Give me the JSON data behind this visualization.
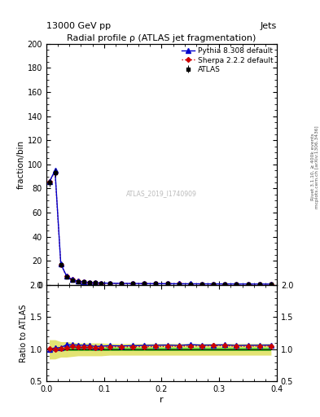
{
  "title": "Radial profile ρ (ATLAS jet fragmentation)",
  "top_left_label": "13000 GeV pp",
  "top_right_label": "Jets",
  "right_label_line1": "Rivet 3.1.10, ≥ 400k events",
  "right_label_line2": "mcplots.cern.ch [arXiv:1306.3436]",
  "watermark": "ATLAS_2019_I1740909",
  "ylabel_main": "fraction/bin",
  "ylabel_ratio": "Ratio to ATLAS",
  "xlabel": "r",
  "ylim_main": [
    0,
    200
  ],
  "ylim_ratio": [
    0.5,
    2.0
  ],
  "yticks_main": [
    0,
    20,
    40,
    60,
    80,
    100,
    120,
    140,
    160,
    180,
    200
  ],
  "yticks_ratio": [
    0.5,
    1.0,
    1.5,
    2.0
  ],
  "xlim": [
    0,
    0.4
  ],
  "xticks": [
    0.0,
    0.1,
    0.2,
    0.3,
    0.4
  ],
  "atlas_x": [
    0.005,
    0.015,
    0.025,
    0.035,
    0.045,
    0.055,
    0.065,
    0.075,
    0.085,
    0.095,
    0.11,
    0.13,
    0.15,
    0.17,
    0.19,
    0.21,
    0.23,
    0.25,
    0.27,
    0.29,
    0.31,
    0.33,
    0.35,
    0.37,
    0.39
  ],
  "atlas_y": [
    85.0,
    93.0,
    17.0,
    7.0,
    4.2,
    3.0,
    2.4,
    2.0,
    1.8,
    1.6,
    1.4,
    1.3,
    1.2,
    1.15,
    1.1,
    1.05,
    1.0,
    0.95,
    0.92,
    0.88,
    0.85,
    0.83,
    0.8,
    0.78,
    0.75
  ],
  "atlas_yerr": [
    3.0,
    3.5,
    0.6,
    0.35,
    0.18,
    0.13,
    0.1,
    0.09,
    0.08,
    0.07,
    0.06,
    0.06,
    0.05,
    0.05,
    0.05,
    0.04,
    0.04,
    0.04,
    0.04,
    0.04,
    0.04,
    0.03,
    0.03,
    0.03,
    0.03
  ],
  "pythia_x": [
    0.005,
    0.015,
    0.025,
    0.035,
    0.045,
    0.055,
    0.065,
    0.075,
    0.085,
    0.095,
    0.11,
    0.13,
    0.15,
    0.17,
    0.19,
    0.21,
    0.23,
    0.25,
    0.27,
    0.29,
    0.31,
    0.33,
    0.35,
    0.37,
    0.39
  ],
  "pythia_y": [
    85.5,
    95.0,
    17.5,
    7.5,
    4.5,
    3.2,
    2.55,
    2.12,
    1.88,
    1.68,
    1.48,
    1.37,
    1.27,
    1.22,
    1.17,
    1.12,
    1.06,
    1.02,
    0.98,
    0.94,
    0.91,
    0.88,
    0.85,
    0.83,
    0.8
  ],
  "sherpa_x": [
    0.005,
    0.015,
    0.025,
    0.035,
    0.045,
    0.055,
    0.065,
    0.075,
    0.085,
    0.095,
    0.11,
    0.13,
    0.15,
    0.17,
    0.19,
    0.21,
    0.23,
    0.25,
    0.27,
    0.29,
    0.31,
    0.33,
    0.35,
    0.37,
    0.39
  ],
  "sherpa_y": [
    86.0,
    93.5,
    17.2,
    7.2,
    4.4,
    3.1,
    2.5,
    2.08,
    1.85,
    1.65,
    1.46,
    1.35,
    1.25,
    1.2,
    1.15,
    1.1,
    1.05,
    1.0,
    0.97,
    0.93,
    0.9,
    0.87,
    0.84,
    0.82,
    0.79
  ],
  "pythia_ratio": [
    1.006,
    1.022,
    1.029,
    1.071,
    1.071,
    1.067,
    1.063,
    1.06,
    1.044,
    1.05,
    1.057,
    1.054,
    1.058,
    1.061,
    1.064,
    1.067,
    1.06,
    1.074,
    1.065,
    1.068,
    1.071,
    1.06,
    1.063,
    1.064,
    1.067
  ],
  "sherpa_ratio": [
    1.012,
    1.005,
    1.012,
    1.029,
    1.048,
    1.033,
    1.042,
    1.04,
    1.028,
    1.031,
    1.043,
    1.038,
    1.042,
    1.043,
    1.045,
    1.048,
    1.05,
    1.053,
    1.054,
    1.057,
    1.059,
    1.048,
    1.05,
    1.051,
    1.053
  ],
  "green_lo": 0.975,
  "green_hi": 1.025,
  "yellow_lo": [
    0.85,
    0.85,
    0.88,
    0.88,
    0.89,
    0.9,
    0.9,
    0.9,
    0.9,
    0.9,
    0.91,
    0.91,
    0.91,
    0.91,
    0.91,
    0.91,
    0.91,
    0.91,
    0.91,
    0.91,
    0.91,
    0.91,
    0.91,
    0.91,
    0.91
  ],
  "yellow_hi": [
    1.15,
    1.15,
    1.12,
    1.12,
    1.11,
    1.1,
    1.1,
    1.1,
    1.1,
    1.1,
    1.09,
    1.09,
    1.09,
    1.09,
    1.09,
    1.09,
    1.09,
    1.09,
    1.09,
    1.09,
    1.09,
    1.09,
    1.09,
    1.09,
    1.09
  ],
  "atlas_color": "#000000",
  "pythia_color": "#0000cc",
  "sherpa_color": "#cc0000",
  "green_color": "#00bb00",
  "yellow_color": "#cccc00",
  "bg_color": "#ffffff"
}
